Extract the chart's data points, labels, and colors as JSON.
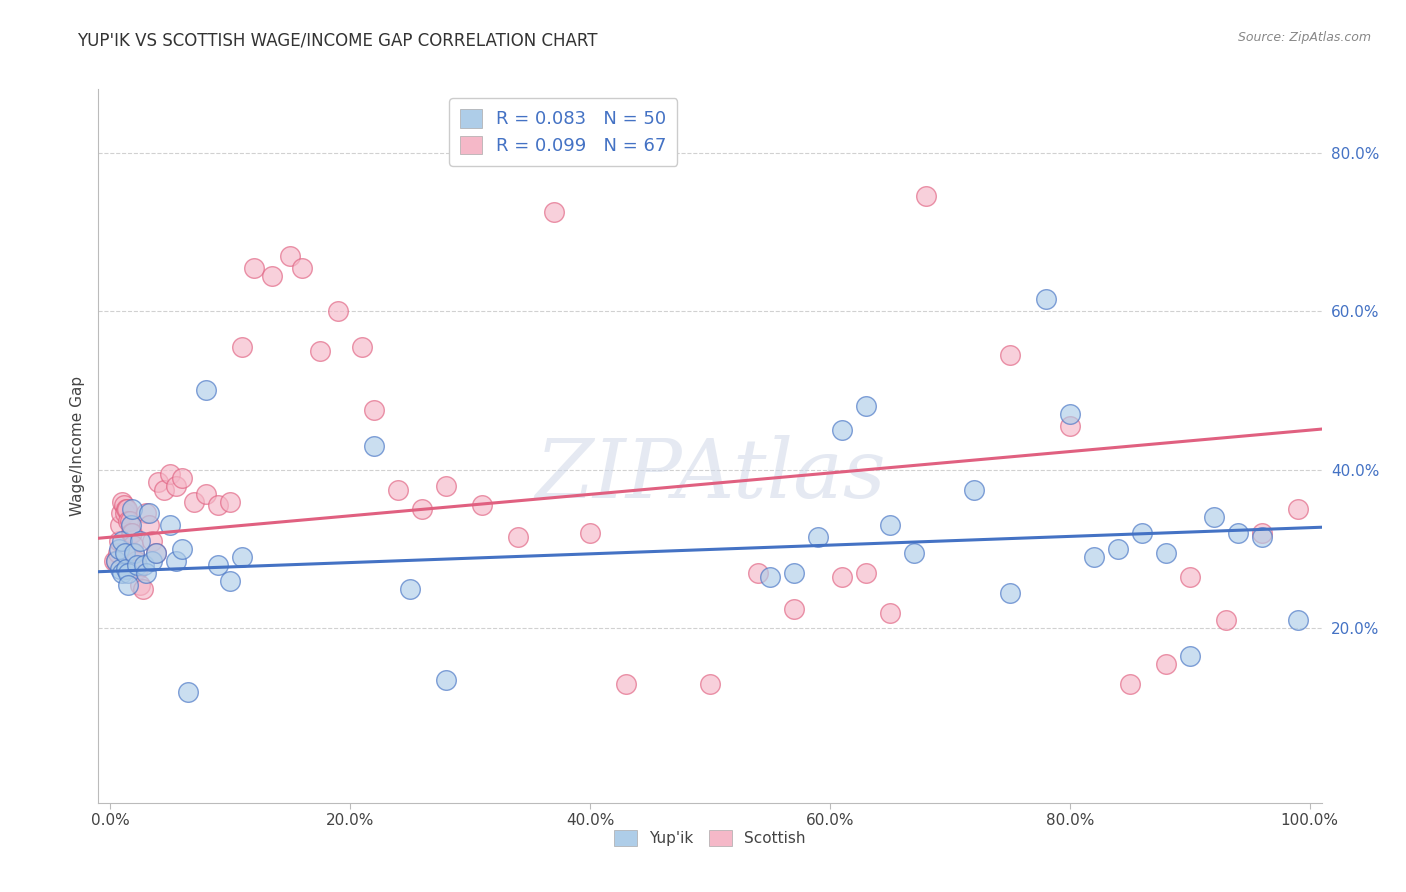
{
  "title": "YUP'IK VS SCOTTISH WAGE/INCOME GAP CORRELATION CHART",
  "source": "Source: ZipAtlas.com",
  "ylabel": "Wage/Income Gap",
  "watermark": "ZIPAtlas",
  "xlim": [
    -0.01,
    1.01
  ],
  "ylim": [
    -0.02,
    0.88
  ],
  "xtick_values": [
    0.0,
    0.2,
    0.4,
    0.6,
    0.8,
    1.0
  ],
  "xtick_labels": [
    "0.0%",
    "20.0%",
    "40.0%",
    "60.0%",
    "80.0%",
    "100.0%"
  ],
  "ytick_values": [
    0.2,
    0.4,
    0.6,
    0.8
  ],
  "ytick_labels": [
    "20.0%",
    "40.0%",
    "60.0%",
    "80.0%"
  ],
  "R_yupik": 0.083,
  "N_yupik": 50,
  "R_scottish": 0.099,
  "N_scottish": 67,
  "color_yupik": "#aecde8",
  "color_scottish": "#f5b8c8",
  "line_color_yupik": "#4472c4",
  "line_color_scottish": "#e06080",
  "legend_text_color": "#4472c4",
  "background_color": "#ffffff",
  "grid_color": "#cccccc",
  "yupik_x": [
    0.005,
    0.007,
    0.008,
    0.01,
    0.01,
    0.012,
    0.013,
    0.015,
    0.015,
    0.017,
    0.018,
    0.02,
    0.022,
    0.025,
    0.028,
    0.03,
    0.032,
    0.035,
    0.038,
    0.05,
    0.055,
    0.06,
    0.065,
    0.08,
    0.09,
    0.1,
    0.11,
    0.22,
    0.25,
    0.28,
    0.55,
    0.57,
    0.59,
    0.61,
    0.63,
    0.65,
    0.67,
    0.72,
    0.75,
    0.78,
    0.8,
    0.82,
    0.84,
    0.86,
    0.88,
    0.9,
    0.92,
    0.94,
    0.96,
    0.99
  ],
  "yupik_y": [
    0.285,
    0.3,
    0.275,
    0.31,
    0.27,
    0.295,
    0.275,
    0.27,
    0.255,
    0.33,
    0.35,
    0.295,
    0.28,
    0.31,
    0.28,
    0.27,
    0.345,
    0.285,
    0.295,
    0.33,
    0.285,
    0.3,
    0.12,
    0.5,
    0.28,
    0.26,
    0.29,
    0.43,
    0.25,
    0.135,
    0.265,
    0.27,
    0.315,
    0.45,
    0.48,
    0.33,
    0.295,
    0.375,
    0.245,
    0.615,
    0.47,
    0.29,
    0.3,
    0.32,
    0.295,
    0.165,
    0.34,
    0.32,
    0.315,
    0.21
  ],
  "scottish_x": [
    0.003,
    0.005,
    0.006,
    0.007,
    0.008,
    0.009,
    0.01,
    0.011,
    0.012,
    0.013,
    0.014,
    0.015,
    0.016,
    0.017,
    0.018,
    0.019,
    0.02,
    0.021,
    0.022,
    0.023,
    0.025,
    0.027,
    0.03,
    0.032,
    0.035,
    0.038,
    0.04,
    0.045,
    0.05,
    0.055,
    0.06,
    0.07,
    0.08,
    0.09,
    0.1,
    0.11,
    0.12,
    0.135,
    0.15,
    0.16,
    0.175,
    0.19,
    0.21,
    0.22,
    0.24,
    0.26,
    0.28,
    0.31,
    0.34,
    0.37,
    0.4,
    0.43,
    0.5,
    0.54,
    0.57,
    0.61,
    0.63,
    0.65,
    0.68,
    0.75,
    0.8,
    0.85,
    0.88,
    0.9,
    0.93,
    0.96,
    0.99
  ],
  "scottish_y": [
    0.285,
    0.285,
    0.295,
    0.31,
    0.33,
    0.345,
    0.36,
    0.355,
    0.345,
    0.35,
    0.35,
    0.335,
    0.335,
    0.32,
    0.32,
    0.305,
    0.295,
    0.285,
    0.275,
    0.275,
    0.255,
    0.25,
    0.345,
    0.33,
    0.31,
    0.295,
    0.385,
    0.375,
    0.395,
    0.38,
    0.39,
    0.36,
    0.37,
    0.355,
    0.36,
    0.555,
    0.655,
    0.645,
    0.67,
    0.655,
    0.55,
    0.6,
    0.555,
    0.475,
    0.375,
    0.35,
    0.38,
    0.355,
    0.315,
    0.725,
    0.32,
    0.13,
    0.13,
    0.27,
    0.225,
    0.265,
    0.27,
    0.22,
    0.745,
    0.545,
    0.455,
    0.13,
    0.155,
    0.265,
    0.21,
    0.32,
    0.35
  ]
}
